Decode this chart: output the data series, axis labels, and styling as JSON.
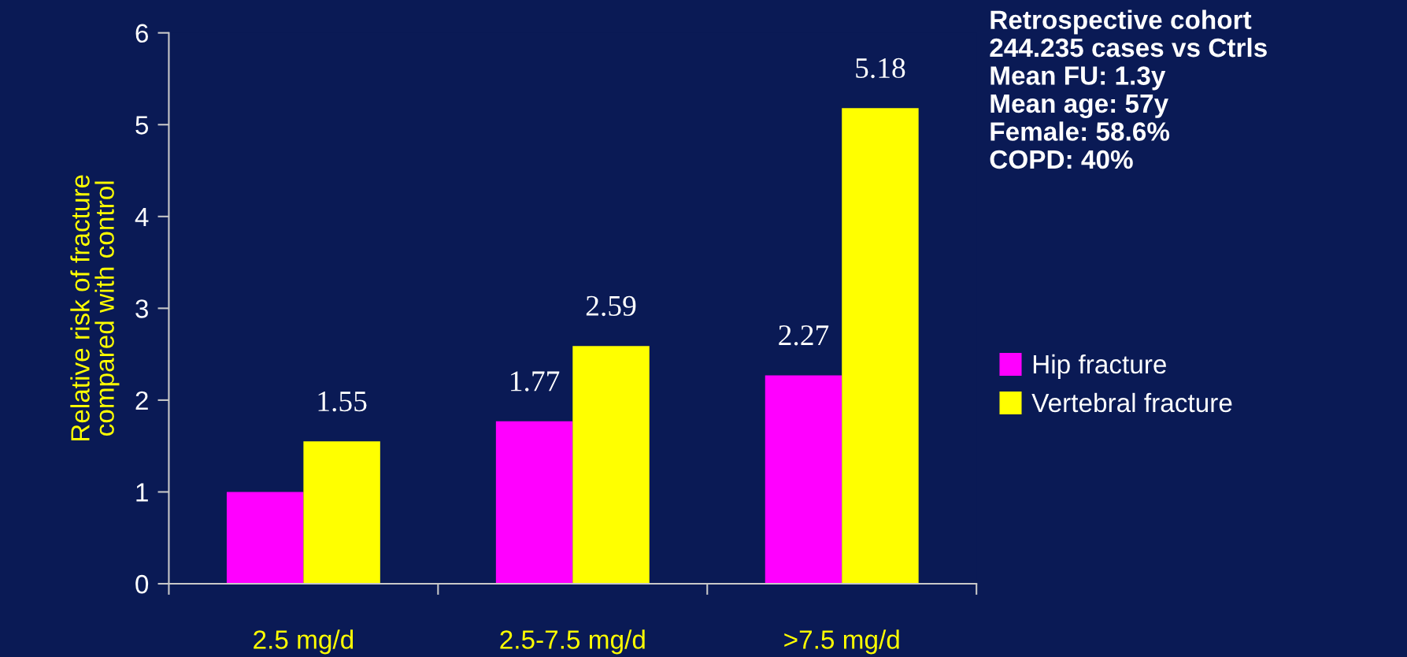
{
  "chart_data": {
    "type": "bar",
    "ylabel": "Relative risk of fracture\ncompared with control",
    "categories": [
      "2.5 mg/d",
      "2.5-7.5 mg/d",
      ">7.5 mg/d"
    ],
    "series": [
      {
        "name": "Hip fracture",
        "color": "#ff00ff",
        "values": [
          1.0,
          1.77,
          2.27
        ],
        "value_labels": [
          null,
          "1.77",
          "2.27"
        ]
      },
      {
        "name": "Vertebral fracture",
        "color": "#ffff00",
        "values": [
          1.55,
          2.59,
          5.18
        ],
        "value_labels": [
          "1.55",
          "2.59",
          "5.18"
        ]
      }
    ],
    "ylim": [
      0,
      6
    ],
    "yticks": [
      0,
      1,
      2,
      3,
      4,
      5,
      6
    ],
    "grid": false,
    "legend": "right",
    "annotations": [
      "Retrospective cohort\n244.235 cases vs Ctrls\nMean FU: 1.3y\nMean age: 57y\nFemale: 58.6%\nCOPD: 40%"
    ]
  }
}
